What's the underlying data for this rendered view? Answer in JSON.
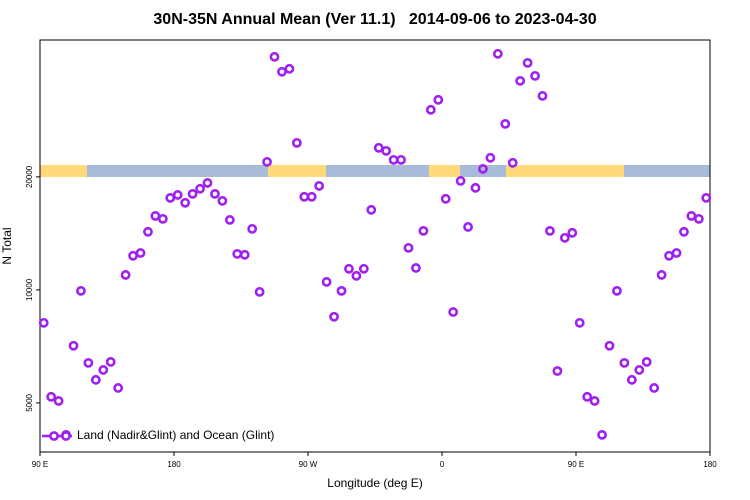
{
  "chart_data": {
    "type": "scatter",
    "title": "30N-35N Annual Mean (Ver 11.1)   2014-09-06 to 2023-04-30",
    "xlabel": "Longitude (deg E)",
    "ylabel": "N Total",
    "xlim": [
      90,
      540
    ],
    "xticks": [
      {
        "value": 90,
        "label": "90 E"
      },
      180,
      {
        "value": 270,
        "label": "90 W"
      },
      {
        "value": 360,
        "label": "0"
      },
      {
        "value": 450,
        "label": "90 E"
      },
      {
        "value": 540,
        "label": "180"
      }
    ],
    "ylim": [
      3700,
      46300
    ],
    "yticks": [
      5000,
      10000,
      20000
    ],
    "log_y": true,
    "legend": "lower left",
    "series": [
      {
        "name": "Land (Nadir&Glint) and Ocean (Glint)",
        "color": "#a020f0",
        "x": [
          92.5,
          97.5,
          102.5,
          107.5,
          112.5,
          117.5,
          122.5,
          127.5,
          132.5,
          137.5,
          142.5,
          147.5,
          152.5,
          157.5,
          162.5,
          167.5,
          172.5,
          177.5,
          182.5,
          187.5,
          192.5,
          197.5,
          202.5,
          207.5,
          212.5,
          217.5,
          222.5,
          227.5,
          232.5,
          237.5,
          242.5,
          247.5,
          252.5,
          257.5,
          262.5,
          267.5,
          272.5,
          277.5,
          282.5,
          287.5,
          292.5,
          297.5,
          302.5,
          307.5,
          312.5,
          317.5,
          322.5,
          327.5,
          332.5,
          337.5,
          342.5,
          347.5,
          352.5,
          357.5,
          362.5,
          367.5,
          372.5,
          377.5,
          382.5,
          387.5,
          392.5,
          397.5,
          402.5,
          407.5,
          412.5,
          417.5,
          422.5,
          427.5,
          432.5,
          437.5,
          442.5,
          447.5,
          452.5,
          457.5,
          462.5,
          467.5,
          472.5,
          477.5,
          482.5,
          487.5,
          492.5,
          497.5,
          502.5,
          507.5,
          512.5,
          517.5,
          522.5,
          527.5,
          532.5,
          537.5
        ],
        "values": [
          8170,
          5190,
          5060,
          4110,
          7100,
          9940,
          6390,
          5760,
          6120,
          6430,
          5480,
          10960,
          12330,
          12540,
          14280,
          15740,
          15460,
          17580,
          17900,
          17060,
          18020,
          18590,
          19270,
          18020,
          17260,
          15360,
          12470,
          12400,
          14540,
          9880,
          21930,
          41760,
          38100,
          38800,
          24640,
          17700,
          17700,
          18920,
          10500,
          8480,
          9940,
          11380,
          10900,
          11380,
          16340,
          23900,
          23460,
          22200,
          22200,
          12940,
          11440,
          14360,
          30170,
          32080,
          17480,
          8730,
          19510,
          14710,
          18700,
          21000,
          22480,
          42540,
          27680,
          21800,
          36040,
          40240,
          37160,
          32860,
          14360,
          6080,
          13760,
          14190,
          8170,
          5190,
          5060,
          4110,
          7100,
          9940,
          6390,
          5760,
          6120,
          6430,
          5480,
          10960,
          12330,
          12540,
          14280,
          15740,
          15460,
          17580
        ]
      }
    ]
  }
}
